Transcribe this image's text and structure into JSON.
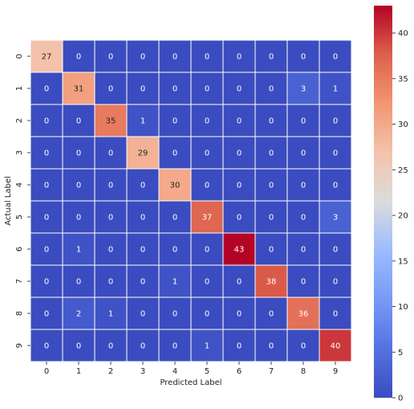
{
  "chart_data": {
    "type": "heatmap",
    "xlabel": "Predicted Label",
    "ylabel": "Actual Label",
    "x_categories": [
      "0",
      "1",
      "2",
      "3",
      "4",
      "5",
      "6",
      "7",
      "8",
      "9"
    ],
    "y_categories": [
      "0",
      "1",
      "2",
      "3",
      "4",
      "5",
      "6",
      "7",
      "8",
      "9"
    ],
    "matrix": [
      [
        27,
        0,
        0,
        0,
        0,
        0,
        0,
        0,
        0,
        0
      ],
      [
        0,
        31,
        0,
        0,
        0,
        0,
        0,
        0,
        3,
        1
      ],
      [
        0,
        0,
        35,
        1,
        0,
        0,
        0,
        0,
        0,
        0
      ],
      [
        0,
        0,
        0,
        29,
        0,
        0,
        0,
        0,
        0,
        0
      ],
      [
        0,
        0,
        0,
        0,
        30,
        0,
        0,
        0,
        0,
        0
      ],
      [
        0,
        0,
        0,
        0,
        0,
        37,
        0,
        0,
        0,
        3
      ],
      [
        0,
        1,
        0,
        0,
        0,
        0,
        43,
        0,
        0,
        0
      ],
      [
        0,
        0,
        0,
        0,
        1,
        0,
        0,
        38,
        0,
        0
      ],
      [
        0,
        2,
        1,
        0,
        0,
        0,
        0,
        0,
        36,
        0
      ],
      [
        0,
        0,
        0,
        0,
        0,
        1,
        0,
        0,
        0,
        40
      ]
    ],
    "colormap": "coolwarm",
    "vmin": 0,
    "vmax": 43,
    "colorbar_ticks": [
      0,
      5,
      10,
      15,
      20,
      25,
      30,
      35,
      40
    ],
    "cell_border_color": "#ffffff",
    "low_color": "#3b4cc0",
    "mid_color": "#dddddd",
    "high_color": "#b40426"
  }
}
